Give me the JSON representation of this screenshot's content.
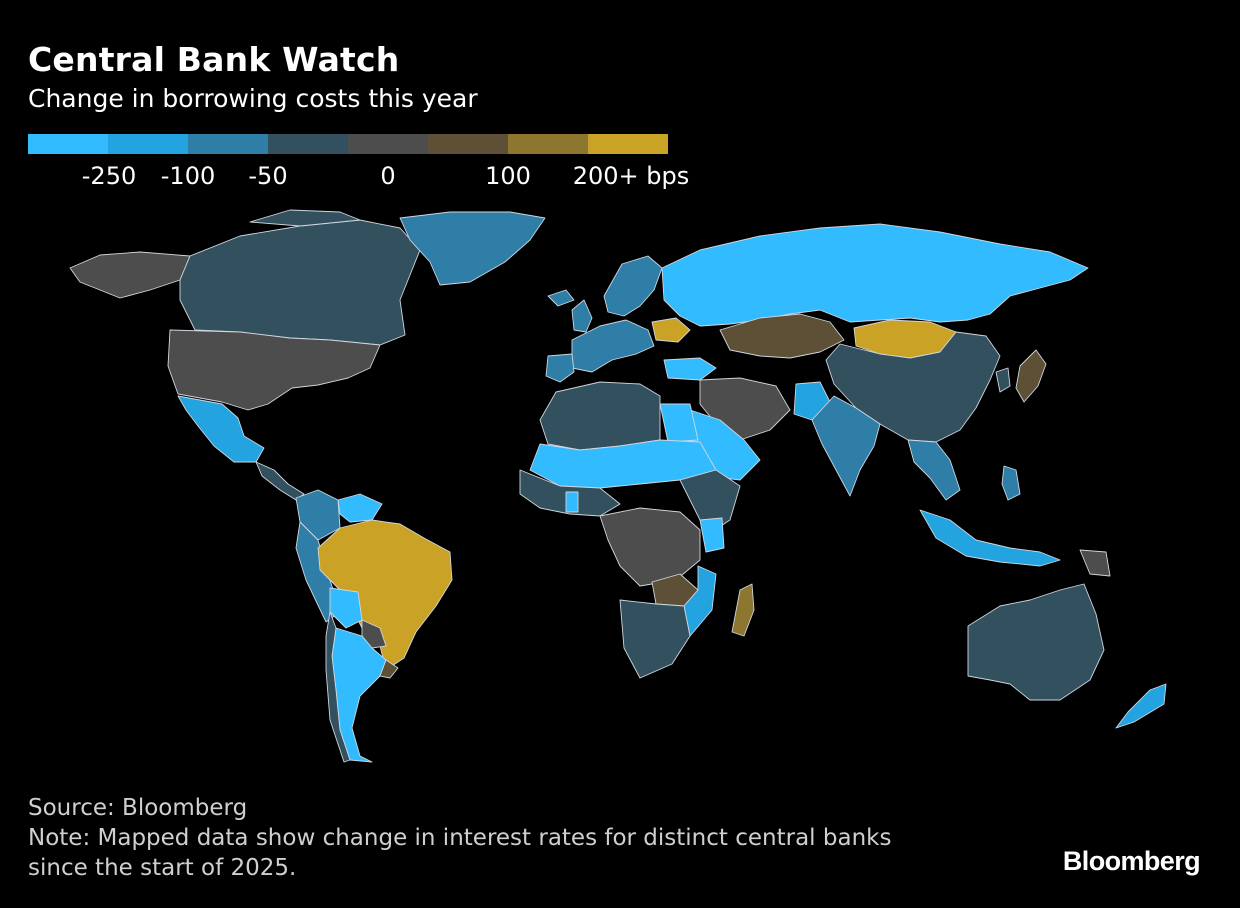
{
  "header": {
    "title": "Central Bank Watch",
    "subtitle": "Change in borrowing costs this year"
  },
  "legend": {
    "colors": [
      "#33bbff",
      "#23a3e0",
      "#2e7ea8",
      "#33505f",
      "#4d4d4d",
      "#5e5036",
      "#8c7630",
      "#caa326"
    ],
    "labels": [
      "-250",
      "-100",
      "-50",
      "0",
      "100",
      "200+ bps"
    ]
  },
  "map": {
    "background": "#000000",
    "border_color": "#cfd6de",
    "no_data_color": "#000000"
  },
  "footer": {
    "source": "Source: Bloomberg",
    "note_line1": "Note: Mapped data show change in interest rates for distinct central banks",
    "note_line2": "since the start of 2025.",
    "brand": "Bloomberg"
  }
}
